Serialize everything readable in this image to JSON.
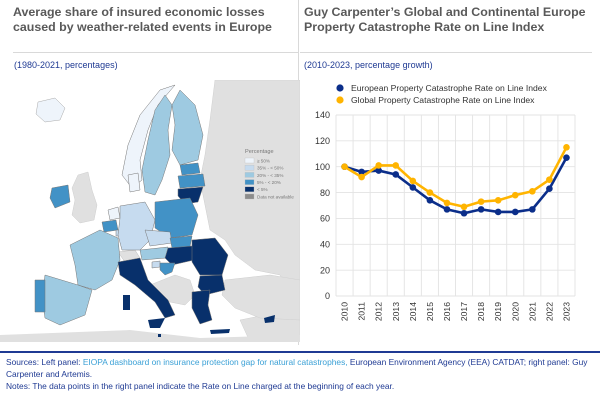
{
  "left_panel": {
    "title": "Average share of insured economic losses caused by weather-related events in Europe",
    "subtitle": "(1980-2021, percentages)",
    "map": {
      "legend_title": "Percentage",
      "legend": [
        {
          "label": "≥ 50%",
          "color": "#eef4fb"
        },
        {
          "label": "35% - < 50%",
          "color": "#c6dbef"
        },
        {
          "label": "20% - < 35%",
          "color": "#9ecae1"
        },
        {
          "label": "5% - < 20%",
          "color": "#4292c6"
        },
        {
          "label": "< 5%",
          "color": "#08306b"
        },
        {
          "label": "Data not available",
          "color": "#8c8c8c"
        }
      ],
      "countries": [
        {
          "code": "IS",
          "class": "≥ 50%"
        },
        {
          "code": "NO",
          "class": "≥ 50%"
        },
        {
          "code": "SE",
          "class": "20% - < 35%"
        },
        {
          "code": "FI",
          "class": "20% - < 35%"
        },
        {
          "code": "EE",
          "class": "5% - < 20%"
        },
        {
          "code": "LV",
          "class": "5% - < 20%"
        },
        {
          "code": "LT",
          "class": "< 5%"
        },
        {
          "code": "DK",
          "class": "≥ 50%"
        },
        {
          "code": "IE",
          "class": "5% - < 20%"
        },
        {
          "code": "NL",
          "class": "≥ 50%"
        },
        {
          "code": "BE",
          "class": "5% - < 20%"
        },
        {
          "code": "LU",
          "class": "35% - < 50%"
        },
        {
          "code": "DE",
          "class": "35% - < 50%"
        },
        {
          "code": "PL",
          "class": "5% - < 20%"
        },
        {
          "code": "CZ",
          "class": "35% - < 50%"
        },
        {
          "code": "SK",
          "class": "5% - < 20%"
        },
        {
          "code": "AT",
          "class": "20% - < 35%"
        },
        {
          "code": "HU",
          "class": "< 5%"
        },
        {
          "code": "RO",
          "class": "< 5%"
        },
        {
          "code": "BG",
          "class": "< 5%"
        },
        {
          "code": "FR",
          "class": "20% - < 35%"
        },
        {
          "code": "ES",
          "class": "20% - < 35%"
        },
        {
          "code": "PT",
          "class": "5% - < 20%"
        },
        {
          "code": "IT",
          "class": "< 5%"
        },
        {
          "code": "SI",
          "class": "35% - < 50%"
        },
        {
          "code": "HR",
          "class": "5% - < 20%"
        },
        {
          "code": "GR",
          "class": "< 5%"
        },
        {
          "code": "CY",
          "class": "< 5%"
        },
        {
          "code": "MT",
          "class": "< 5%"
        }
      ]
    }
  },
  "right_panel": {
    "title": "Guy Carpenter’s Global and Continental Europe Property Catastrophe Rate on Line Index",
    "subtitle": "(2010-2023, percentage growth)"
  },
  "chart_data": {
    "type": "line",
    "title": "Guy Carpenter’s Global and Continental Europe Property Catastrophe Rate on Line Index",
    "subtitle": "(2010-2023, percentage growth)",
    "xlabel": "",
    "ylabel": "",
    "x": [
      "2010",
      "2011",
      "2012",
      "2013",
      "2014",
      "2015",
      "2016",
      "2017",
      "2018",
      "2019",
      "2020",
      "2021",
      "2022",
      "2023"
    ],
    "ylim": [
      0,
      140
    ],
    "yticks": [
      0,
      20,
      40,
      60,
      80,
      100,
      120,
      140
    ],
    "grid": true,
    "legend_position": "top",
    "series": [
      {
        "name": "European Property Catastrophe Rate on Line Index",
        "color": "#0b2e8a",
        "values": [
          100,
          96,
          97,
          94,
          84,
          74,
          67,
          64,
          67,
          65,
          65,
          67,
          83,
          107
        ]
      },
      {
        "name": "Global Property Catastrophe Rate on Line Index",
        "color": "#ffb400",
        "values": [
          100,
          92,
          101,
          101,
          89,
          80,
          72,
          69,
          73,
          74,
          78,
          81,
          90,
          115
        ]
      }
    ]
  },
  "footer": {
    "sources_prefix": "Sources: Left panel: ",
    "sources_link": "EIOPA dashboard on insurance protection gap for natural catastrophes,",
    "sources_suffix": " European Environment Agency (EEA) CATDAT; right panel: Guy Carpenter and Artemis.",
    "notes": "Notes: The data points in the right panel indicate the Rate on Line charged at the beginning of each year."
  }
}
